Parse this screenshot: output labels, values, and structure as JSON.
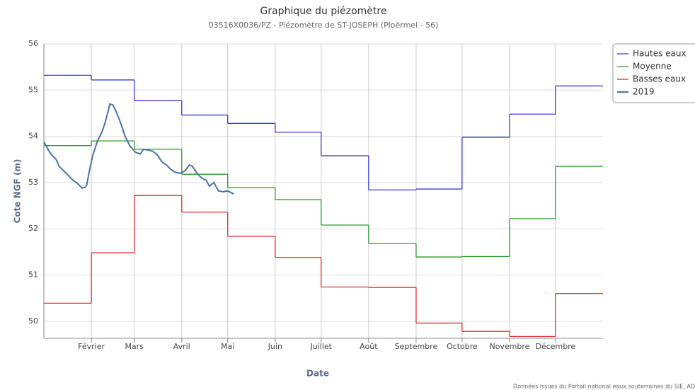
{
  "chart_data": {
    "type": "line",
    "title": "Graphique du piézomètre",
    "subtitle": "03516X0036/PZ - Piézomètre de ST-JOSEPH (Ploërmel - 56)",
    "x_label": "Date",
    "y_label": "Cote NGF (m)",
    "source": "Données issues du Portail national eaux souterraines du SIE, AD",
    "xlim": [
      0,
      365
    ],
    "xticks": [
      {
        "value": 31,
        "label": "Février"
      },
      {
        "value": 59,
        "label": "Mars"
      },
      {
        "value": 90,
        "label": "Avril"
      },
      {
        "value": 120,
        "label": "Mai"
      },
      {
        "value": 151,
        "label": "Juin"
      },
      {
        "value": 181,
        "label": "Juillet"
      },
      {
        "value": 212,
        "label": "Août"
      },
      {
        "value": 243,
        "label": "Septembre"
      },
      {
        "value": 273,
        "label": "Octobre"
      },
      {
        "value": 304,
        "label": "Novembre"
      },
      {
        "value": 334,
        "label": "Décembre"
      }
    ],
    "ylim": [
      49.63,
      56
    ],
    "yticks": [
      50,
      51,
      52,
      53,
      54,
      55,
      56
    ],
    "grid": true,
    "legend": "top-right",
    "series": [
      {
        "name": "Hautes eaux",
        "color": "#3b3bd6",
        "step": true,
        "x": [
          0,
          31,
          59,
          90,
          120,
          151,
          181,
          212,
          243,
          273,
          304,
          334
        ],
        "values": [
          55.32,
          55.22,
          54.77,
          54.46,
          54.28,
          54.09,
          53.58,
          52.84,
          52.86,
          53.98,
          54.48,
          55.09
        ]
      },
      {
        "name": "Moyenne",
        "color": "#2e9a2e",
        "step": true,
        "x": [
          0,
          31,
          59,
          90,
          120,
          151,
          181,
          212,
          243,
          273,
          304,
          334
        ],
        "values": [
          53.8,
          53.9,
          53.72,
          53.18,
          52.89,
          52.63,
          52.08,
          51.68,
          51.39,
          51.4,
          52.22,
          53.35
        ]
      },
      {
        "name": "Basses eaux",
        "color": "#e03030",
        "step": true,
        "x": [
          0,
          31,
          59,
          90,
          120,
          151,
          181,
          212,
          243,
          273,
          304,
          334
        ],
        "values": [
          50.39,
          51.48,
          52.72,
          52.36,
          51.84,
          51.38,
          50.74,
          50.73,
          49.96,
          49.78,
          49.67,
          50.6
        ]
      },
      {
        "name": "2019",
        "color": "#4a72a8",
        "step": false,
        "x": [
          0,
          3,
          5,
          8,
          10,
          13,
          16,
          19,
          22,
          25,
          27,
          28,
          30,
          32,
          35,
          38,
          40,
          42,
          43,
          45,
          47,
          50,
          53,
          56,
          60,
          63,
          65,
          68,
          71,
          74,
          77,
          80,
          83,
          86,
          89,
          92,
          95,
          97,
          100,
          103,
          106,
          108,
          111,
          114,
          117,
          120,
          124
        ],
        "values": [
          53.88,
          53.7,
          53.6,
          53.5,
          53.35,
          53.25,
          53.15,
          53.05,
          52.98,
          52.88,
          52.9,
          52.95,
          53.3,
          53.6,
          53.9,
          54.1,
          54.3,
          54.55,
          54.7,
          54.68,
          54.55,
          54.3,
          54.0,
          53.8,
          53.65,
          53.62,
          53.72,
          53.7,
          53.68,
          53.6,
          53.45,
          53.38,
          53.28,
          53.22,
          53.2,
          53.25,
          53.38,
          53.35,
          53.2,
          53.1,
          53.05,
          52.92,
          53.0,
          52.82,
          52.8,
          52.82,
          52.75
        ]
      }
    ]
  }
}
